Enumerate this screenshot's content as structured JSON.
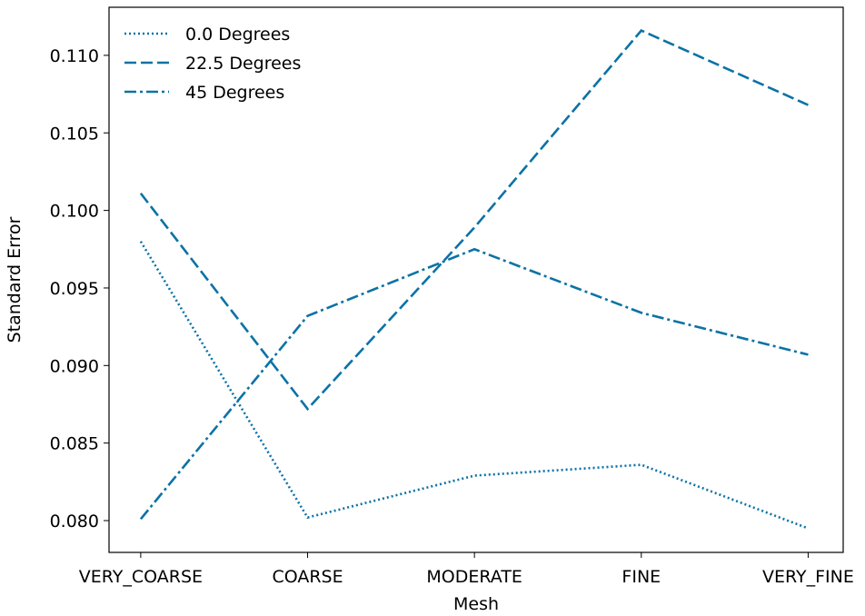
{
  "chart_data": {
    "type": "line",
    "title": "",
    "xlabel": "Mesh",
    "ylabel": "Standard Error",
    "categories": [
      "VERY_COARSE",
      "COARSE",
      "MODERATE",
      "FINE",
      "VERY_FINE"
    ],
    "ylim": [
      0.07795,
      0.1131
    ],
    "yticks": [
      0.08,
      0.085,
      0.09,
      0.095,
      0.1,
      0.105,
      0.11
    ],
    "ytick_labels": [
      "0.080",
      "0.085",
      "0.090",
      "0.095",
      "0.100",
      "0.105",
      "0.110"
    ],
    "grid": false,
    "legend_position": "top-left",
    "color": "#0b72a6",
    "series": [
      {
        "name": "0.0 Degrees",
        "style": "dotted",
        "values": [
          0.098,
          0.0802,
          0.0829,
          0.0836,
          0.0795
        ]
      },
      {
        "name": "22.5 Degrees",
        "style": "dashed",
        "values": [
          0.1011,
          0.0872,
          0.0989,
          0.1116,
          0.1068
        ]
      },
      {
        "name": "45 Degrees",
        "style": "dashdot",
        "values": [
          0.0801,
          0.0932,
          0.0975,
          0.0934,
          0.0907
        ]
      }
    ]
  }
}
